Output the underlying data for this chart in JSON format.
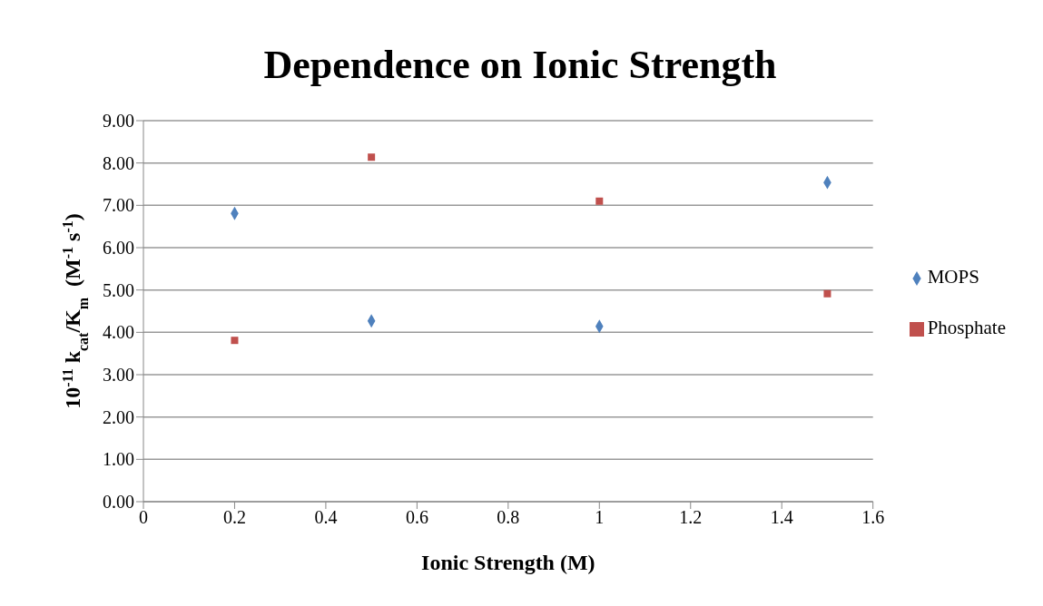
{
  "chart_data": {
    "type": "scatter",
    "title": "Dependence on Ionic Strength",
    "xlabel": "Ionic Strength (M)",
    "ylabel": "10$^{-11}$ k$_{cat}$/K$_{m}$  (M$^{-1}$ s$^{-1}$)",
    "x": [
      0.2,
      0.5,
      1,
      1.5
    ],
    "series": [
      {
        "name": "MOPS",
        "color": "#4f81bd",
        "marker": "diamond",
        "values": [
          6.81,
          4.27,
          4.14,
          7.54
        ]
      },
      {
        "name": "Phosphate",
        "color": "#c0504d",
        "marker": "square",
        "values": [
          3.81,
          8.14,
          7.1,
          4.91
        ]
      }
    ],
    "xlim": [
      0,
      1.6
    ],
    "xticks": [
      0,
      0.2,
      0.4,
      0.6,
      0.8,
      1,
      1.2,
      1.4,
      1.6
    ],
    "ylim": [
      0,
      9
    ],
    "yticks": [
      {
        "value": 0,
        "label": "0.00"
      },
      {
        "value": 1,
        "label": "1.00"
      },
      {
        "value": 2,
        "label": "2.00"
      },
      {
        "value": 3,
        "label": "3.00"
      },
      {
        "value": 4,
        "label": "4.00"
      },
      {
        "value": 5,
        "label": "5.00"
      },
      {
        "value": 6,
        "label": "6.00"
      },
      {
        "value": 7,
        "label": "7.00"
      },
      {
        "value": 8,
        "label": "8.00"
      },
      {
        "value": 9,
        "label": "9.00"
      }
    ],
    "grid": "y",
    "legend": "right"
  }
}
